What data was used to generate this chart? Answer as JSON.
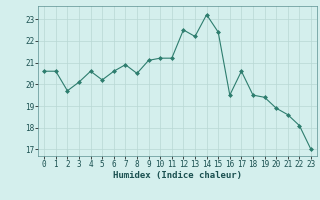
{
  "x": [
    0,
    1,
    2,
    3,
    4,
    5,
    6,
    7,
    8,
    9,
    10,
    11,
    12,
    13,
    14,
    15,
    16,
    17,
    18,
    19,
    20,
    21,
    22,
    23
  ],
  "y": [
    20.6,
    20.6,
    19.7,
    20.1,
    20.6,
    20.2,
    20.6,
    20.9,
    20.5,
    21.1,
    21.2,
    21.2,
    22.5,
    22.2,
    23.2,
    22.4,
    19.5,
    20.6,
    19.5,
    19.4,
    18.9,
    18.6,
    18.1,
    17.0
  ],
  "line_color": "#2d7d6e",
  "marker": "D",
  "marker_size": 2.0,
  "xlabel": "Humidex (Indice chaleur)",
  "ylim": [
    16.7,
    23.6
  ],
  "yticks": [
    17,
    18,
    19,
    20,
    21,
    22,
    23
  ],
  "xticks": [
    0,
    1,
    2,
    3,
    4,
    5,
    6,
    7,
    8,
    9,
    10,
    11,
    12,
    13,
    14,
    15,
    16,
    17,
    18,
    19,
    20,
    21,
    22,
    23
  ],
  "bg_color": "#d4efed",
  "grid_color": "#b8d8d4",
  "tick_fontsize": 5.5,
  "xlabel_fontsize": 6.5
}
